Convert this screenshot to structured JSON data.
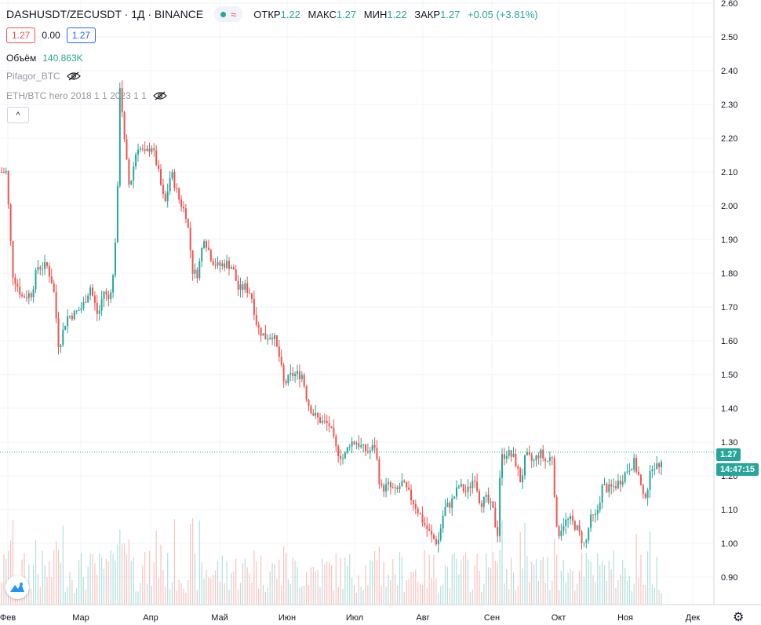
{
  "header": {
    "symbol": "DASHUSDT/ZECUSDT · 1Д · BINANCE",
    "open_label": "ОТКР",
    "open_value": "1.22",
    "high_label": "МАКС",
    "high_value": "1.27",
    "low_label": "МИН",
    "low_value": "1.22",
    "close_label": "ЗАКР",
    "close_value": "1.27",
    "change": "+0.05 (+3.81%)",
    "wave_glyph": "≈",
    "bid": "1.27",
    "spread": "0.00",
    "ask": "1.27"
  },
  "legend": {
    "volume_label": "Объём",
    "volume_value": "140.863K",
    "indicator1": "Pifagor_BTC",
    "indicator2": "ETH/BTC hero 2018 1 1 2023 1 1",
    "collapse_glyph": "^"
  },
  "price_scale": {
    "last_price": "1.27",
    "countdown": "14:47:15"
  },
  "icons": {
    "eye_hidden": "eye-crossed-icon",
    "logo": "tradingview-logo-icon",
    "settings": "gear-icon"
  },
  "colors": {
    "up": "#26a69a",
    "down": "#ef5350",
    "grid": "#f0f3fa",
    "axis_text": "#131722"
  },
  "chart_data": {
    "type": "candlestick",
    "y_range": [
      0.84,
      2.61
    ],
    "y_ticks": [
      "0.90",
      "1.00",
      "1.10",
      "1.20",
      "1.30",
      "1.40",
      "1.50",
      "1.60",
      "1.70",
      "1.80",
      "1.90",
      "2.00",
      "2.10",
      "2.20",
      "2.30",
      "2.40",
      "2.50",
      "2.60"
    ],
    "x_ticks": [
      "Фев",
      "Мар",
      "Апр",
      "Май",
      "Июн",
      "Июл",
      "Авг",
      "Сен",
      "Окт",
      "Ноя",
      "Дек"
    ],
    "last_close": 1.27,
    "path_points": [
      [
        0,
        2.1
      ],
      [
        8,
        2.1
      ],
      [
        16,
        1.8
      ],
      [
        28,
        1.73
      ],
      [
        40,
        1.74
      ],
      [
        48,
        1.82
      ],
      [
        60,
        1.82
      ],
      [
        68,
        1.76
      ],
      [
        75,
        1.58
      ],
      [
        85,
        1.67
      ],
      [
        95,
        1.68
      ],
      [
        105,
        1.7
      ],
      [
        115,
        1.76
      ],
      [
        125,
        1.67
      ],
      [
        132,
        1.75
      ],
      [
        138,
        1.72
      ],
      [
        145,
        1.8
      ],
      [
        150,
        2.05
      ],
      [
        153,
        2.38
      ],
      [
        158,
        2.2
      ],
      [
        165,
        2.05
      ],
      [
        175,
        2.18
      ],
      [
        185,
        2.15
      ],
      [
        193,
        2.18
      ],
      [
        200,
        2.12
      ],
      [
        210,
        2.0
      ],
      [
        218,
        2.1
      ],
      [
        228,
        2.02
      ],
      [
        238,
        1.97
      ],
      [
        246,
        1.8
      ],
      [
        252,
        1.8
      ],
      [
        260,
        1.91
      ],
      [
        270,
        1.84
      ],
      [
        278,
        1.82
      ],
      [
        288,
        1.83
      ],
      [
        296,
        1.82
      ],
      [
        304,
        1.75
      ],
      [
        312,
        1.76
      ],
      [
        320,
        1.74
      ],
      [
        328,
        1.64
      ],
      [
        338,
        1.61
      ],
      [
        348,
        1.62
      ],
      [
        356,
        1.55
      ],
      [
        362,
        1.47
      ],
      [
        372,
        1.5
      ],
      [
        385,
        1.5
      ],
      [
        392,
        1.42
      ],
      [
        400,
        1.38
      ],
      [
        410,
        1.36
      ],
      [
        420,
        1.35
      ],
      [
        428,
        1.28
      ],
      [
        438,
        1.25
      ],
      [
        446,
        1.3
      ],
      [
        455,
        1.3
      ],
      [
        462,
        1.28
      ],
      [
        470,
        1.27
      ],
      [
        478,
        1.29
      ],
      [
        485,
        1.16
      ],
      [
        495,
        1.17
      ],
      [
        505,
        1.15
      ],
      [
        512,
        1.18
      ],
      [
        520,
        1.15
      ],
      [
        530,
        1.11
      ],
      [
        540,
        1.06
      ],
      [
        550,
        1.02
      ],
      [
        558,
        1.0
      ],
      [
        566,
        1.1
      ],
      [
        575,
        1.12
      ],
      [
        585,
        1.17
      ],
      [
        595,
        1.15
      ],
      [
        605,
        1.2
      ],
      [
        612,
        1.12
      ],
      [
        620,
        1.13
      ],
      [
        628,
        1.1
      ],
      [
        634,
        1.02
      ],
      [
        638,
        1.25
      ],
      [
        646,
        1.27
      ],
      [
        656,
        1.25
      ],
      [
        664,
        1.18
      ],
      [
        670,
        1.26
      ],
      [
        680,
        1.24
      ],
      [
        688,
        1.27
      ],
      [
        696,
        1.24
      ],
      [
        704,
        1.26
      ],
      [
        710,
        1.02
      ],
      [
        718,
        1.06
      ],
      [
        726,
        1.07
      ],
      [
        734,
        1.05
      ],
      [
        740,
        1.02
      ],
      [
        746,
        0.99
      ],
      [
        752,
        1.07
      ],
      [
        760,
        1.08
      ],
      [
        768,
        1.17
      ],
      [
        776,
        1.16
      ],
      [
        784,
        1.17
      ],
      [
        792,
        1.19
      ],
      [
        800,
        1.22
      ],
      [
        808,
        1.24
      ],
      [
        814,
        1.2
      ],
      [
        820,
        1.13
      ],
      [
        826,
        1.17
      ],
      [
        832,
        1.24
      ],
      [
        838,
        1.22
      ],
      [
        845,
        1.27
      ]
    ]
  }
}
